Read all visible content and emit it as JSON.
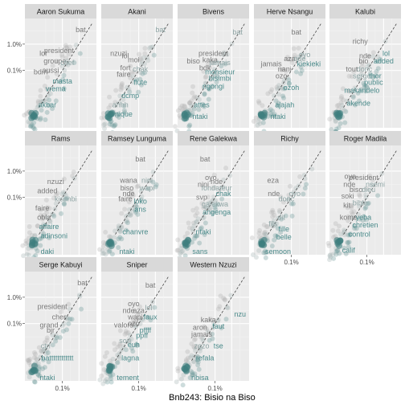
{
  "chart_data": {
    "type": "scatter",
    "caption": "Bnb243: Bisio na Biso",
    "scale": "log",
    "y_ticks": [
      "1.0%",
      "0.1%"
    ],
    "x_ticks": [
      "0.1%"
    ],
    "panels": [
      {
        "name": "Aaron Sukuma",
        "words": [
          {
            "t": "bat",
            "x": 2.1,
            "y": 2.55
          },
          {
            "t": "president",
            "x": 0.8,
            "y": 1.75
          },
          {
            "t": "lol",
            "x": -0.15,
            "y": 1.65
          },
          {
            "t": "groupe",
            "x": 0.55,
            "y": 1.35
          },
          {
            "t": "chef",
            "x": 1.3,
            "y": 1.3
          },
          {
            "t": "aussi",
            "x": 0.3,
            "y": 1.0
          },
          {
            "t": "bdm",
            "x": -0.3,
            "y": 0.95
          },
          {
            "t": "masta",
            "x": 1.0,
            "y": 0.6
          },
          {
            "t": "vrema",
            "x": 0.6,
            "y": 0.3
          },
          {
            "t": "akbar",
            "x": 0.1,
            "y": -0.3
          }
        ]
      },
      {
        "name": "Akani",
        "words": [
          {
            "t": "bat",
            "x": 2.3,
            "y": 2.55
          },
          {
            "t": "nzuzi",
            "x": -0.2,
            "y": 1.65
          },
          {
            "t": "lol",
            "x": 0.2,
            "y": 1.55
          },
          {
            "t": "moi",
            "x": 0.7,
            "y": 1.4
          },
          {
            "t": "chak",
            "x": 1.1,
            "y": 1.05
          },
          {
            "t": "fort",
            "x": 0.2,
            "y": 1.1
          },
          {
            "t": "faire",
            "x": 0.1,
            "y": 0.85
          },
          {
            "t": "flute",
            "x": 1.1,
            "y": 0.55
          },
          {
            "t": "dcmp",
            "x": 0.5,
            "y": 0.05
          },
          {
            "t": "ahhh",
            "x": -0.1,
            "y": -0.3
          },
          {
            "t": "nique",
            "x": 0.1,
            "y": -0.65
          }
        ]
      },
      {
        "name": "Bivens",
        "words": [
          {
            "t": "bat",
            "x": 2.35,
            "y": 2.45
          },
          {
            "t": "president",
            "x": 0.9,
            "y": 1.65
          },
          {
            "t": "kaka",
            "x": 0.7,
            "y": 1.4
          },
          {
            "t": "biso",
            "x": -0.3,
            "y": 1.35
          },
          {
            "t": "jamais",
            "x": 1.3,
            "y": 1.3
          },
          {
            "t": "bdk",
            "x": 0.4,
            "y": 1.1
          },
          {
            "t": "monsieur",
            "x": 1.3,
            "y": 0.95
          },
          {
            "t": "bisimbi",
            "x": 1.3,
            "y": 0.7
          },
          {
            "t": "ngongi",
            "x": 0.9,
            "y": 0.4
          },
          {
            "t": "attes",
            "x": 0.2,
            "y": -0.3
          },
          {
            "t": "ntaki",
            "x": 0.1,
            "y": -0.75
          }
        ]
      },
      {
        "name": "Herve Nsangu",
        "words": [
          {
            "t": "oyo",
            "x": 1.8,
            "y": 1.6
          },
          {
            "t": "bat",
            "x": 1.3,
            "y": 2.45
          },
          {
            "t": "aza",
            "x": 0.9,
            "y": 1.45
          },
          {
            "t": "nde",
            "x": 1.5,
            "y": 1.45
          },
          {
            "t": "jamais",
            "x": -0.2,
            "y": 1.25
          },
          {
            "t": "kiekieki",
            "x": 2.05,
            "y": 1.25
          },
          {
            "t": "nani",
            "x": 0.6,
            "y": 1.05
          },
          {
            "t": "ozo",
            "x": 0.4,
            "y": 0.8
          },
          {
            "t": "ozoh",
            "x": 1.0,
            "y": 0.35
          },
          {
            "t": "ajajah",
            "x": 0.6,
            "y": -0.3
          },
          {
            "t": "ntaki",
            "x": 0.2,
            "y": -0.75
          }
        ]
      },
      {
        "name": "Kalubi",
        "words": [
          {
            "t": "richy",
            "x": 0.6,
            "y": 2.1
          },
          {
            "t": "lol",
            "x": 2.15,
            "y": 1.65
          },
          {
            "t": "nde",
            "x": 0.9,
            "y": 1.55
          },
          {
            "t": "bio",
            "x": 0.8,
            "y": 1.35
          },
          {
            "t": "added",
            "x": 2.0,
            "y": 1.35
          },
          {
            "t": "tout",
            "x": 0.1,
            "y": 1.05
          },
          {
            "t": "donc",
            "x": 0.85,
            "y": 1.05
          },
          {
            "t": "serge",
            "x": 0.7,
            "y": 0.8
          },
          {
            "t": "thor",
            "x": 1.5,
            "y": 0.8
          },
          {
            "t": "public",
            "x": 1.4,
            "y": 0.55
          },
          {
            "t": "makandelo",
            "x": 0.7,
            "y": 0.25
          },
          {
            "t": "akende",
            "x": 0.5,
            "y": -0.25
          }
        ]
      },
      {
        "name": "Rams",
        "words": [
          {
            "t": "nzuzi",
            "x": 0.6,
            "y": 1.6
          },
          {
            "t": "added",
            "x": 0.1,
            "y": 1.25
          },
          {
            "t": "kisimbi",
            "x": 1.2,
            "y": 0.95
          },
          {
            "t": "faire",
            "x": -0.2,
            "y": 0.6
          },
          {
            "t": "obla",
            "x": -0.1,
            "y": 0.25
          },
          {
            "t": "affaire",
            "x": 0.2,
            "y": -0.1
          },
          {
            "t": "adinsoni",
            "x": 0.5,
            "y": -0.45
          },
          {
            "t": "daki",
            "x": 0.1,
            "y": -1.05
          }
        ]
      },
      {
        "name": "Ramsey Lunguma",
        "words": [
          {
            "t": "bat",
            "x": 1.1,
            "y": 2.45
          },
          {
            "t": "wana",
            "x": 0.4,
            "y": 1.65
          },
          {
            "t": "nini",
            "x": 1.5,
            "y": 1.65
          },
          {
            "t": "biso",
            "x": 0.3,
            "y": 1.35
          },
          {
            "t": "wapi",
            "x": 1.5,
            "y": 1.35
          },
          {
            "t": "nde",
            "x": 0.4,
            "y": 1.15
          },
          {
            "t": "faire",
            "x": 0.2,
            "y": 0.95
          },
          {
            "t": "loko",
            "x": 1.1,
            "y": 0.85
          },
          {
            "t": "ans",
            "x": 1.1,
            "y": 0.55
          },
          {
            "t": "chanvre",
            "x": 0.8,
            "y": -0.3
          },
          {
            "t": "ntaki",
            "x": 0.3,
            "y": -1.05
          }
        ]
      },
      {
        "name": "Rene Galekwa",
        "words": [
          {
            "t": "bat",
            "x": 0.4,
            "y": 2.45
          },
          {
            "t": "oyo",
            "x": 0.75,
            "y": 1.75
          },
          {
            "t": "nde",
            "x": 1.1,
            "y": 1.6
          },
          {
            "t": "fondateur",
            "x": 1.1,
            "y": 1.35
          },
          {
            "t": "nini",
            "x": 0.3,
            "y": 1.5
          },
          {
            "t": "chak",
            "x": 1.5,
            "y": 1.15
          },
          {
            "t": "svp",
            "x": 0.2,
            "y": 1.0
          },
          {
            "t": "galekwa",
            "x": 1.0,
            "y": 0.75
          },
          {
            "t": "angenga",
            "x": 1.1,
            "y": 0.45
          },
          {
            "t": "ntaki",
            "x": 0.3,
            "y": -0.3
          },
          {
            "t": "sans",
            "x": 0.1,
            "y": -1.05
          }
        ]
      },
      {
        "name": "Richy",
        "words": [
          {
            "t": "eza",
            "x": -0.1,
            "y": 1.65
          },
          {
            "t": "oyo",
            "x": 1.2,
            "y": 1.15
          },
          {
            "t": "nde",
            "x": -0.05,
            "y": 1.15
          },
          {
            "t": "donc",
            "x": 0.7,
            "y": 0.95
          },
          {
            "t": "dit",
            "x": 0.4,
            "y": 0.25
          },
          {
            "t": "fils",
            "x": -0.1,
            "y": 0.0
          },
          {
            "t": "fille",
            "x": 0.55,
            "y": -0.2
          },
          {
            "t": "belle",
            "x": 0.55,
            "y": -0.5
          },
          {
            "t": "semoon",
            "x": 0.2,
            "y": -1.05
          }
        ]
      },
      {
        "name": "Roger Madila",
        "words": [
          {
            "t": "oyo",
            "x": 0.0,
            "y": 1.8
          },
          {
            "t": "president",
            "x": 0.8,
            "y": 1.75
          },
          {
            "t": "nde",
            "x": -0.05,
            "y": 1.5
          },
          {
            "t": "nsemi",
            "x": 1.5,
            "y": 1.5
          },
          {
            "t": "biso",
            "x": 0.35,
            "y": 1.3
          },
          {
            "t": "dieu",
            "x": 1.1,
            "y": 1.3
          },
          {
            "t": "soki",
            "x": -0.15,
            "y": 1.05
          },
          {
            "t": "bible",
            "x": 0.6,
            "y": 0.8
          },
          {
            "t": "kit",
            "x": -0.2,
            "y": 0.7
          },
          {
            "t": "kome",
            "x": -0.1,
            "y": 0.25
          },
          {
            "t": "yeba",
            "x": 0.8,
            "y": 0.25
          },
          {
            "t": "chretien",
            "x": 0.9,
            "y": -0.05
          },
          {
            "t": "control",
            "x": 0.55,
            "y": -0.4
          },
          {
            "t": "calif",
            "x": -0.1,
            "y": -1.0
          }
        ]
      },
      {
        "name": "Serge Kabuyi",
        "words": [
          {
            "t": "bat",
            "x": 2.2,
            "y": 2.55
          },
          {
            "t": "president",
            "x": 0.4,
            "y": 1.65
          },
          {
            "t": "cher",
            "x": 0.8,
            "y": 1.25
          },
          {
            "t": "grand",
            "x": 0.2,
            "y": 0.95
          },
          {
            "t": "bjr",
            "x": 0.3,
            "y": 0.75
          },
          {
            "t": "ctrl",
            "x": 0.0,
            "y": 0.15
          },
          {
            "t": "batttttttttttt",
            "x": 0.7,
            "y": -0.3
          },
          {
            "t": "ntaki",
            "x": 0.1,
            "y": -1.05
          }
        ]
      },
      {
        "name": "Sniper",
        "words": [
          {
            "t": "bat",
            "x": 1.7,
            "y": 2.45
          },
          {
            "t": "oyo",
            "x": 0.7,
            "y": 1.75
          },
          {
            "t": "nde",
            "x": 0.4,
            "y": 1.5
          },
          {
            "t": "aza",
            "x": 1.0,
            "y": 1.5
          },
          {
            "t": "lol",
            "x": 1.6,
            "y": 1.6
          },
          {
            "t": "wapi",
            "x": 0.8,
            "y": 1.25
          },
          {
            "t": "faux",
            "x": 1.7,
            "y": 1.25
          },
          {
            "t": "valors",
            "x": 0.1,
            "y": 0.95
          },
          {
            "t": "ozo",
            "x": 0.7,
            "y": 1.0
          },
          {
            "t": "pffff",
            "x": 1.4,
            "y": 0.75
          },
          {
            "t": "ppff",
            "x": 1.2,
            "y": 0.55
          },
          {
            "t": "euh",
            "x": 0.7,
            "y": 0.2
          },
          {
            "t": "soili",
            "x": 0.2,
            "y": 0.35
          },
          {
            "t": "lagna",
            "x": 0.5,
            "y": -0.3
          },
          {
            "t": "tement",
            "x": 0.35,
            "y": -1.05
          }
        ]
      },
      {
        "name": "Western Nzuzi",
        "words": [
          {
            "t": "nzu",
            "x": 2.5,
            "y": 1.35
          },
          {
            "t": "kaka",
            "x": 0.6,
            "y": 1.15
          },
          {
            "t": "faut",
            "x": 1.2,
            "y": 0.9
          },
          {
            "t": "jamais",
            "x": 0.2,
            "y": 0.6
          },
          {
            "t": "aron",
            "x": 0.1,
            "y": 0.85
          },
          {
            "t": "zozo",
            "x": 0.2,
            "y": 0.15
          },
          {
            "t": "tse",
            "x": 1.2,
            "y": 0.15
          },
          {
            "t": "refala",
            "x": 0.4,
            "y": -0.3
          },
          {
            "t": "nbisa",
            "x": 0.1,
            "y": -1.05
          }
        ]
      }
    ]
  }
}
